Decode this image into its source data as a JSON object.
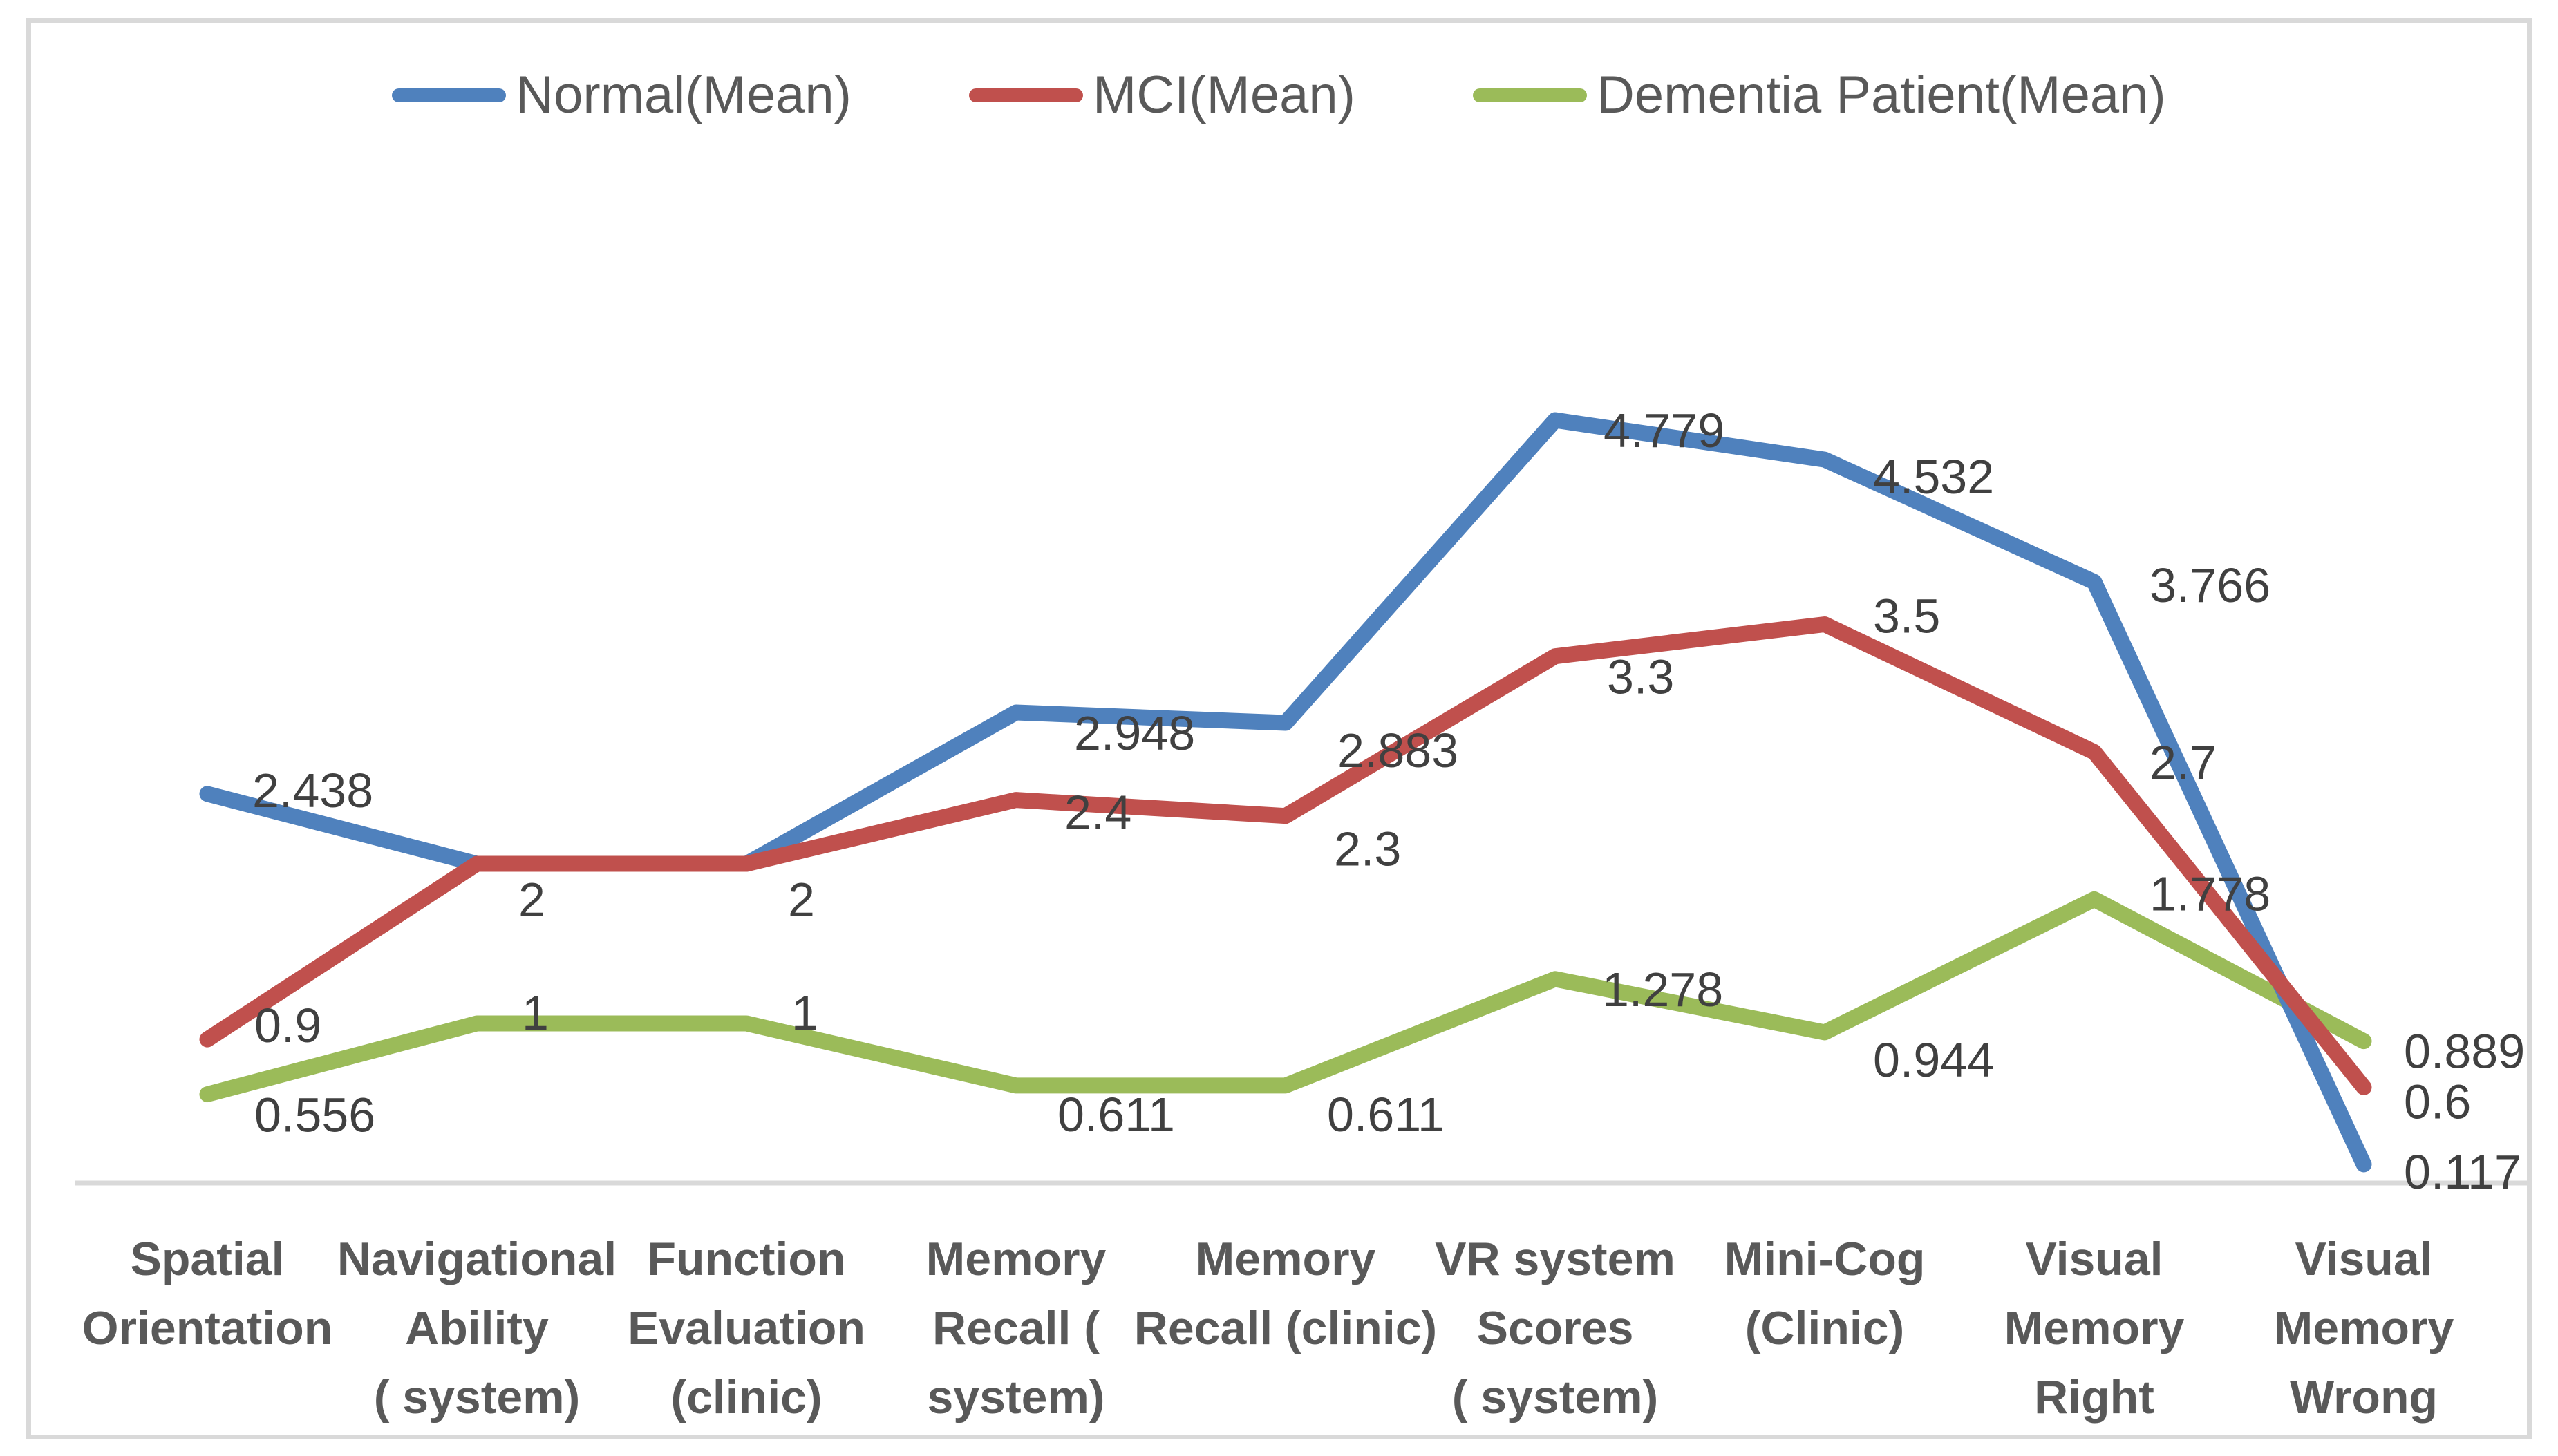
{
  "page": {
    "background_color": "#ffffff",
    "frame_border_color": "#d9d9d9"
  },
  "legend": {
    "position": "top-center",
    "items": [
      {
        "label": "Normal(Mean)",
        "color": "#4F81BD"
      },
      {
        "label": "MCI(Mean)",
        "color": "#C0504D"
      },
      {
        "label": "Dementia Patient(Mean)",
        "color": "#9BBB59"
      }
    ]
  },
  "chart_data": {
    "type": "line",
    "title": "",
    "xlabel": "",
    "ylabel": "",
    "ylim": [
      0,
      5
    ],
    "grid": false,
    "legend_position": "top",
    "data_labels_shown": true,
    "axis_line_color": "#d9d9d9",
    "data_label_color": "#404040",
    "category_label_color": "#595959",
    "categories": [
      "Spatial Orientation",
      "Navigational Ability ( system)",
      "Function Evaluation (clinic)",
      "Memory Recall ( system)",
      "Memory Recall (clinic)",
      "VR system Scores ( system)",
      "Mini-Cog (Clinic)",
      "Visual Memory Right",
      "Visual Memory Wrong"
    ],
    "category_lines": [
      [
        "Spatial",
        "Orientation"
      ],
      [
        "Navigational",
        "Ability",
        "( system)"
      ],
      [
        "Function",
        "Evaluation",
        "(clinic)"
      ],
      [
        "Memory",
        "Recall (",
        "system)"
      ],
      [
        "Memory",
        "Recall (clinic)"
      ],
      [
        "VR system",
        "Scores",
        "( system)"
      ],
      [
        "Mini-Cog",
        "(Clinic)"
      ],
      [
        "Visual",
        "Memory",
        "Right"
      ],
      [
        "Visual",
        "Memory",
        "Wrong"
      ]
    ],
    "series": [
      {
        "name": "Normal(Mean)",
        "color": "#4F81BD",
        "values": [
          2.438,
          2,
          2,
          2.948,
          2.883,
          4.779,
          4.532,
          3.766,
          0.117
        ]
      },
      {
        "name": "MCI(Mean)",
        "color": "#C0504D",
        "values": [
          0.9,
          2,
          2,
          2.4,
          2.3,
          3.3,
          3.5,
          2.7,
          0.6
        ]
      },
      {
        "name": "Dementia Patient(Mean)",
        "color": "#9BBB59",
        "values": [
          0.556,
          1,
          1,
          0.611,
          0.611,
          1.278,
          0.944,
          1.778,
          0.889
        ]
      }
    ]
  }
}
